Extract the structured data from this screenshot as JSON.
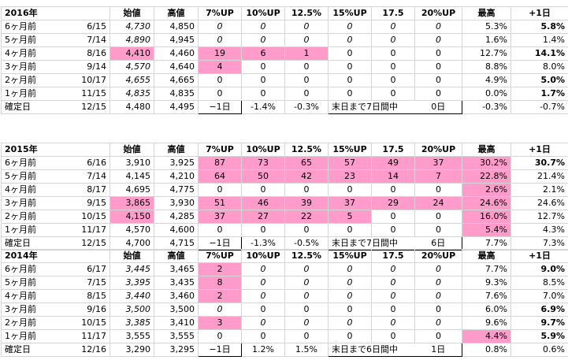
{
  "headers": {
    "open": "始値",
    "high": "高値",
    "up7": "7%UP",
    "up10": "10%UP",
    "up125": "12.5%",
    "up15": "15%UP",
    "up175": "17.5",
    "up20": "20%UP",
    "max": "最高",
    "plus1": "+1日"
  },
  "blocks": [
    {
      "year": "2016年",
      "rows": [
        {
          "label": "6ヶ月前",
          "date": "6/15",
          "open": "4,730",
          "high": "4,850",
          "c7": "0",
          "c10": "0",
          "c125": "0",
          "c15": "0",
          "c175": "0",
          "c20": "0",
          "max": "5.3%",
          "plus1": "5.8%"
        },
        {
          "label": "5ヶ月前",
          "date": "7/14",
          "open": "4,890",
          "high": "4,945",
          "c7": "0",
          "c10": "0",
          "c125": "0",
          "c15": "0",
          "c175": "0",
          "c20": "0",
          "max": "1.6%",
          "plus1": "1.4%"
        },
        {
          "label": "4ヶ月前",
          "date": "8/16",
          "open": "4,410",
          "high": "4,460",
          "c7": "19",
          "c10": "6",
          "c125": "1",
          "c15": "0",
          "c175": "0",
          "c20": "0",
          "max": "12.7%",
          "plus1": "14.1%"
        },
        {
          "label": "3ヶ月前",
          "date": "9/14",
          "open": "4,570",
          "high": "4,640",
          "c7": "4",
          "c10": "0",
          "c125": "0",
          "c15": "0",
          "c175": "0",
          "c20": "0",
          "max": "8.8%",
          "plus1": "8.0%"
        },
        {
          "label": "2ヶ月前",
          "date": "10/17",
          "open": "4,655",
          "high": "4,665",
          "c7": "0",
          "c10": "0",
          "c125": "0",
          "c15": "0",
          "c175": "0",
          "c20": "0",
          "max": "4.9%",
          "plus1": "5.0%"
        },
        {
          "label": "1ヶ月前",
          "date": "11/15",
          "open": "4,835",
          "high": "4,835",
          "c7": "0",
          "c10": "0",
          "c125": "0",
          "c15": "0",
          "c175": "0",
          "c20": "0",
          "max": "0.0%",
          "plus1": "1.7%"
        }
      ],
      "final": {
        "label": "確定日",
        "date": "12/15",
        "open": "4,480",
        "high": "4,495",
        "c7": "−1日",
        "c10": "-1.4%",
        "c125": "-0.3%",
        "note": "末日まで7日間中",
        "c20": "0日",
        "max": "-0.3%",
        "plus1": "-0.7%"
      }
    },
    {
      "year": "2015年",
      "rows": [
        {
          "label": "6ヶ月前",
          "date": "6/16",
          "open": "3,910",
          "high": "3,925",
          "c7": "87",
          "c10": "73",
          "c125": "65",
          "c15": "57",
          "c175": "49",
          "c20": "37",
          "max": "30.2%",
          "plus1": "30.7%"
        },
        {
          "label": "5ヶ月前",
          "date": "7/14",
          "open": "4,145",
          "high": "4,210",
          "c7": "64",
          "c10": "50",
          "c125": "42",
          "c15": "23",
          "c175": "14",
          "c20": "7",
          "max": "22.8%",
          "plus1": "21.4%"
        },
        {
          "label": "4ヶ月前",
          "date": "8/17",
          "open": "4,695",
          "high": "4,775",
          "c7": "0",
          "c10": "0",
          "c125": "0",
          "c15": "0",
          "c175": "0",
          "c20": "0",
          "max": "2.6%",
          "plus1": "2.1%"
        },
        {
          "label": "3ヶ月前",
          "date": "9/15",
          "open": "3,865",
          "high": "3,930",
          "c7": "51",
          "c10": "46",
          "c125": "39",
          "c15": "37",
          "c175": "29",
          "c20": "24",
          "max": "24.6%",
          "plus1": "24.6%"
        },
        {
          "label": "2ヶ月前",
          "date": "10/15",
          "open": "4,150",
          "high": "4,285",
          "c7": "37",
          "c10": "27",
          "c125": "22",
          "c15": "5",
          "c175": "0",
          "c20": "0",
          "max": "16.0%",
          "plus1": "12.7%"
        },
        {
          "label": "1ヶ月前",
          "date": "11/17",
          "open": "4,570",
          "high": "4,600",
          "c7": "0",
          "c10": "0",
          "c125": "0",
          "c15": "0",
          "c175": "0",
          "c20": "0",
          "max": "5.4%",
          "plus1": "4.3%"
        }
      ],
      "final": {
        "label": "確定日",
        "date": "12/15",
        "open": "4,700",
        "high": "4,715",
        "c7": "−1日",
        "c10": "-1.3%",
        "c125": "-0.5%",
        "note": "末日まで7日間中",
        "c20": "6日",
        "max": "7.7%",
        "plus1": "7.3%"
      }
    },
    {
      "year": "2014年",
      "rows": [
        {
          "label": "6ヶ月前",
          "date": "6/17",
          "open": "3,445",
          "high": "3,465",
          "c7": "2",
          "c10": "0",
          "c125": "0",
          "c15": "0",
          "c175": "0",
          "c20": "0",
          "max": "7.7%",
          "plus1": "9.0%"
        },
        {
          "label": "5ヶ月前",
          "date": "7/15",
          "open": "3,395",
          "high": "3,435",
          "c7": "8",
          "c10": "0",
          "c125": "0",
          "c15": "0",
          "c175": "0",
          "c20": "0",
          "max": "9.3%",
          "plus1": "8.5%"
        },
        {
          "label": "4ヶ月前",
          "date": "8/15",
          "open": "3,440",
          "high": "3,460",
          "c7": "2",
          "c10": "0",
          "c125": "0",
          "c15": "0",
          "c175": "0",
          "c20": "0",
          "max": "7.6%",
          "plus1": "7.0%"
        },
        {
          "label": "3ヶ月前",
          "date": "9/16",
          "open": "3,500",
          "high": "3,500",
          "c7": "0",
          "c10": "0",
          "c125": "0",
          "c15": "0",
          "c175": "0",
          "c20": "0",
          "max": "6.0%",
          "plus1": "6.9%"
        },
        {
          "label": "2ヶ月前",
          "date": "10/15",
          "open": "3,385",
          "high": "3,410",
          "c7": "3",
          "c10": "0",
          "c125": "0",
          "c15": "0",
          "c175": "0",
          "c20": "0",
          "max": "9.6%",
          "plus1": "9.7%"
        },
        {
          "label": "1ヶ月前",
          "date": "11/17",
          "open": "3,555",
          "high": "3,555",
          "c7": "0",
          "c10": "0",
          "c125": "0",
          "c15": "0",
          "c175": "0",
          "c20": "0",
          "max": "4.4%",
          "plus1": "5.9%"
        }
      ],
      "final": {
        "label": "確定日",
        "date": "12/16",
        "open": "3,290",
        "high": "3,295",
        "c7": "−1日",
        "c10": "1.2%",
        "c125": "1.5%",
        "note": "末日まで6日間中",
        "c20": "1日",
        "max": "0.8%",
        "plus1": "0.6%"
      }
    }
  ],
  "colors": {
    "highlight": "#ff9ccc",
    "muted": "#a8a8a8",
    "grid": "#d4d4d4"
  }
}
